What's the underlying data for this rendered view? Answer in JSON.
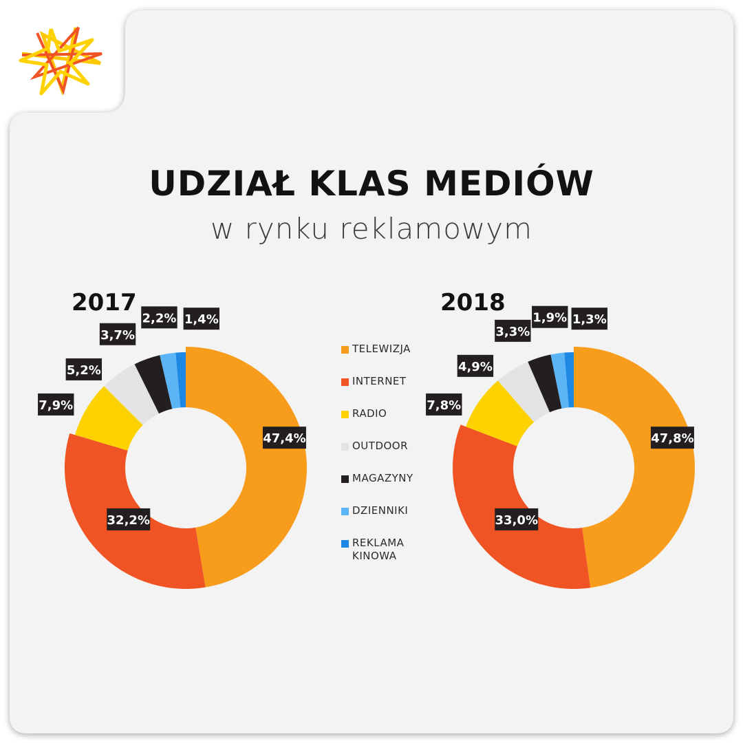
{
  "title": "UDZIAŁ KLAS MEDIÓW",
  "subtitle": "w rynku reklamowym",
  "legend": [
    {
      "label": "TELEWIZJA",
      "color": "#f89c1c"
    },
    {
      "label": "INTERNET",
      "color": "#f15424"
    },
    {
      "label": "RADIO",
      "color": "#fdd200"
    },
    {
      "label": "OUTDOOR",
      "color": "#e3e3e3"
    },
    {
      "label": "MAGAZYNY",
      "color": "#231f20"
    },
    {
      "label": "DZIENNIKI",
      "color": "#5ab4f5"
    },
    {
      "label": "REKLAMA KINOWA",
      "color": "#1e88e5"
    }
  ],
  "chart_data": [
    {
      "type": "pie",
      "title": "2017",
      "categories": [
        "TELEWIZJA",
        "INTERNET",
        "RADIO",
        "OUTDOOR",
        "MAGAZYNY",
        "DZIENNIKI",
        "REKLAMA KINOWA"
      ],
      "values": [
        47.4,
        32.2,
        7.9,
        5.2,
        3.7,
        2.2,
        1.4
      ],
      "labels": [
        "47,4%",
        "32,2%",
        "7,9%",
        "5,2%",
        "3,7%",
        "2,2%",
        "1,4%"
      ]
    },
    {
      "type": "pie",
      "title": "2018",
      "categories": [
        "TELEWIZJA",
        "INTERNET",
        "RADIO",
        "OUTDOOR",
        "MAGAZYNY",
        "DZIENNIKI",
        "REKLAMA KINOWA"
      ],
      "values": [
        47.8,
        33.0,
        7.8,
        4.9,
        3.3,
        1.9,
        1.3
      ],
      "labels": [
        "47,8%",
        "33,0%",
        "7,8%",
        "4,9%",
        "3,3%",
        "1,9%",
        "1,3%"
      ]
    }
  ]
}
